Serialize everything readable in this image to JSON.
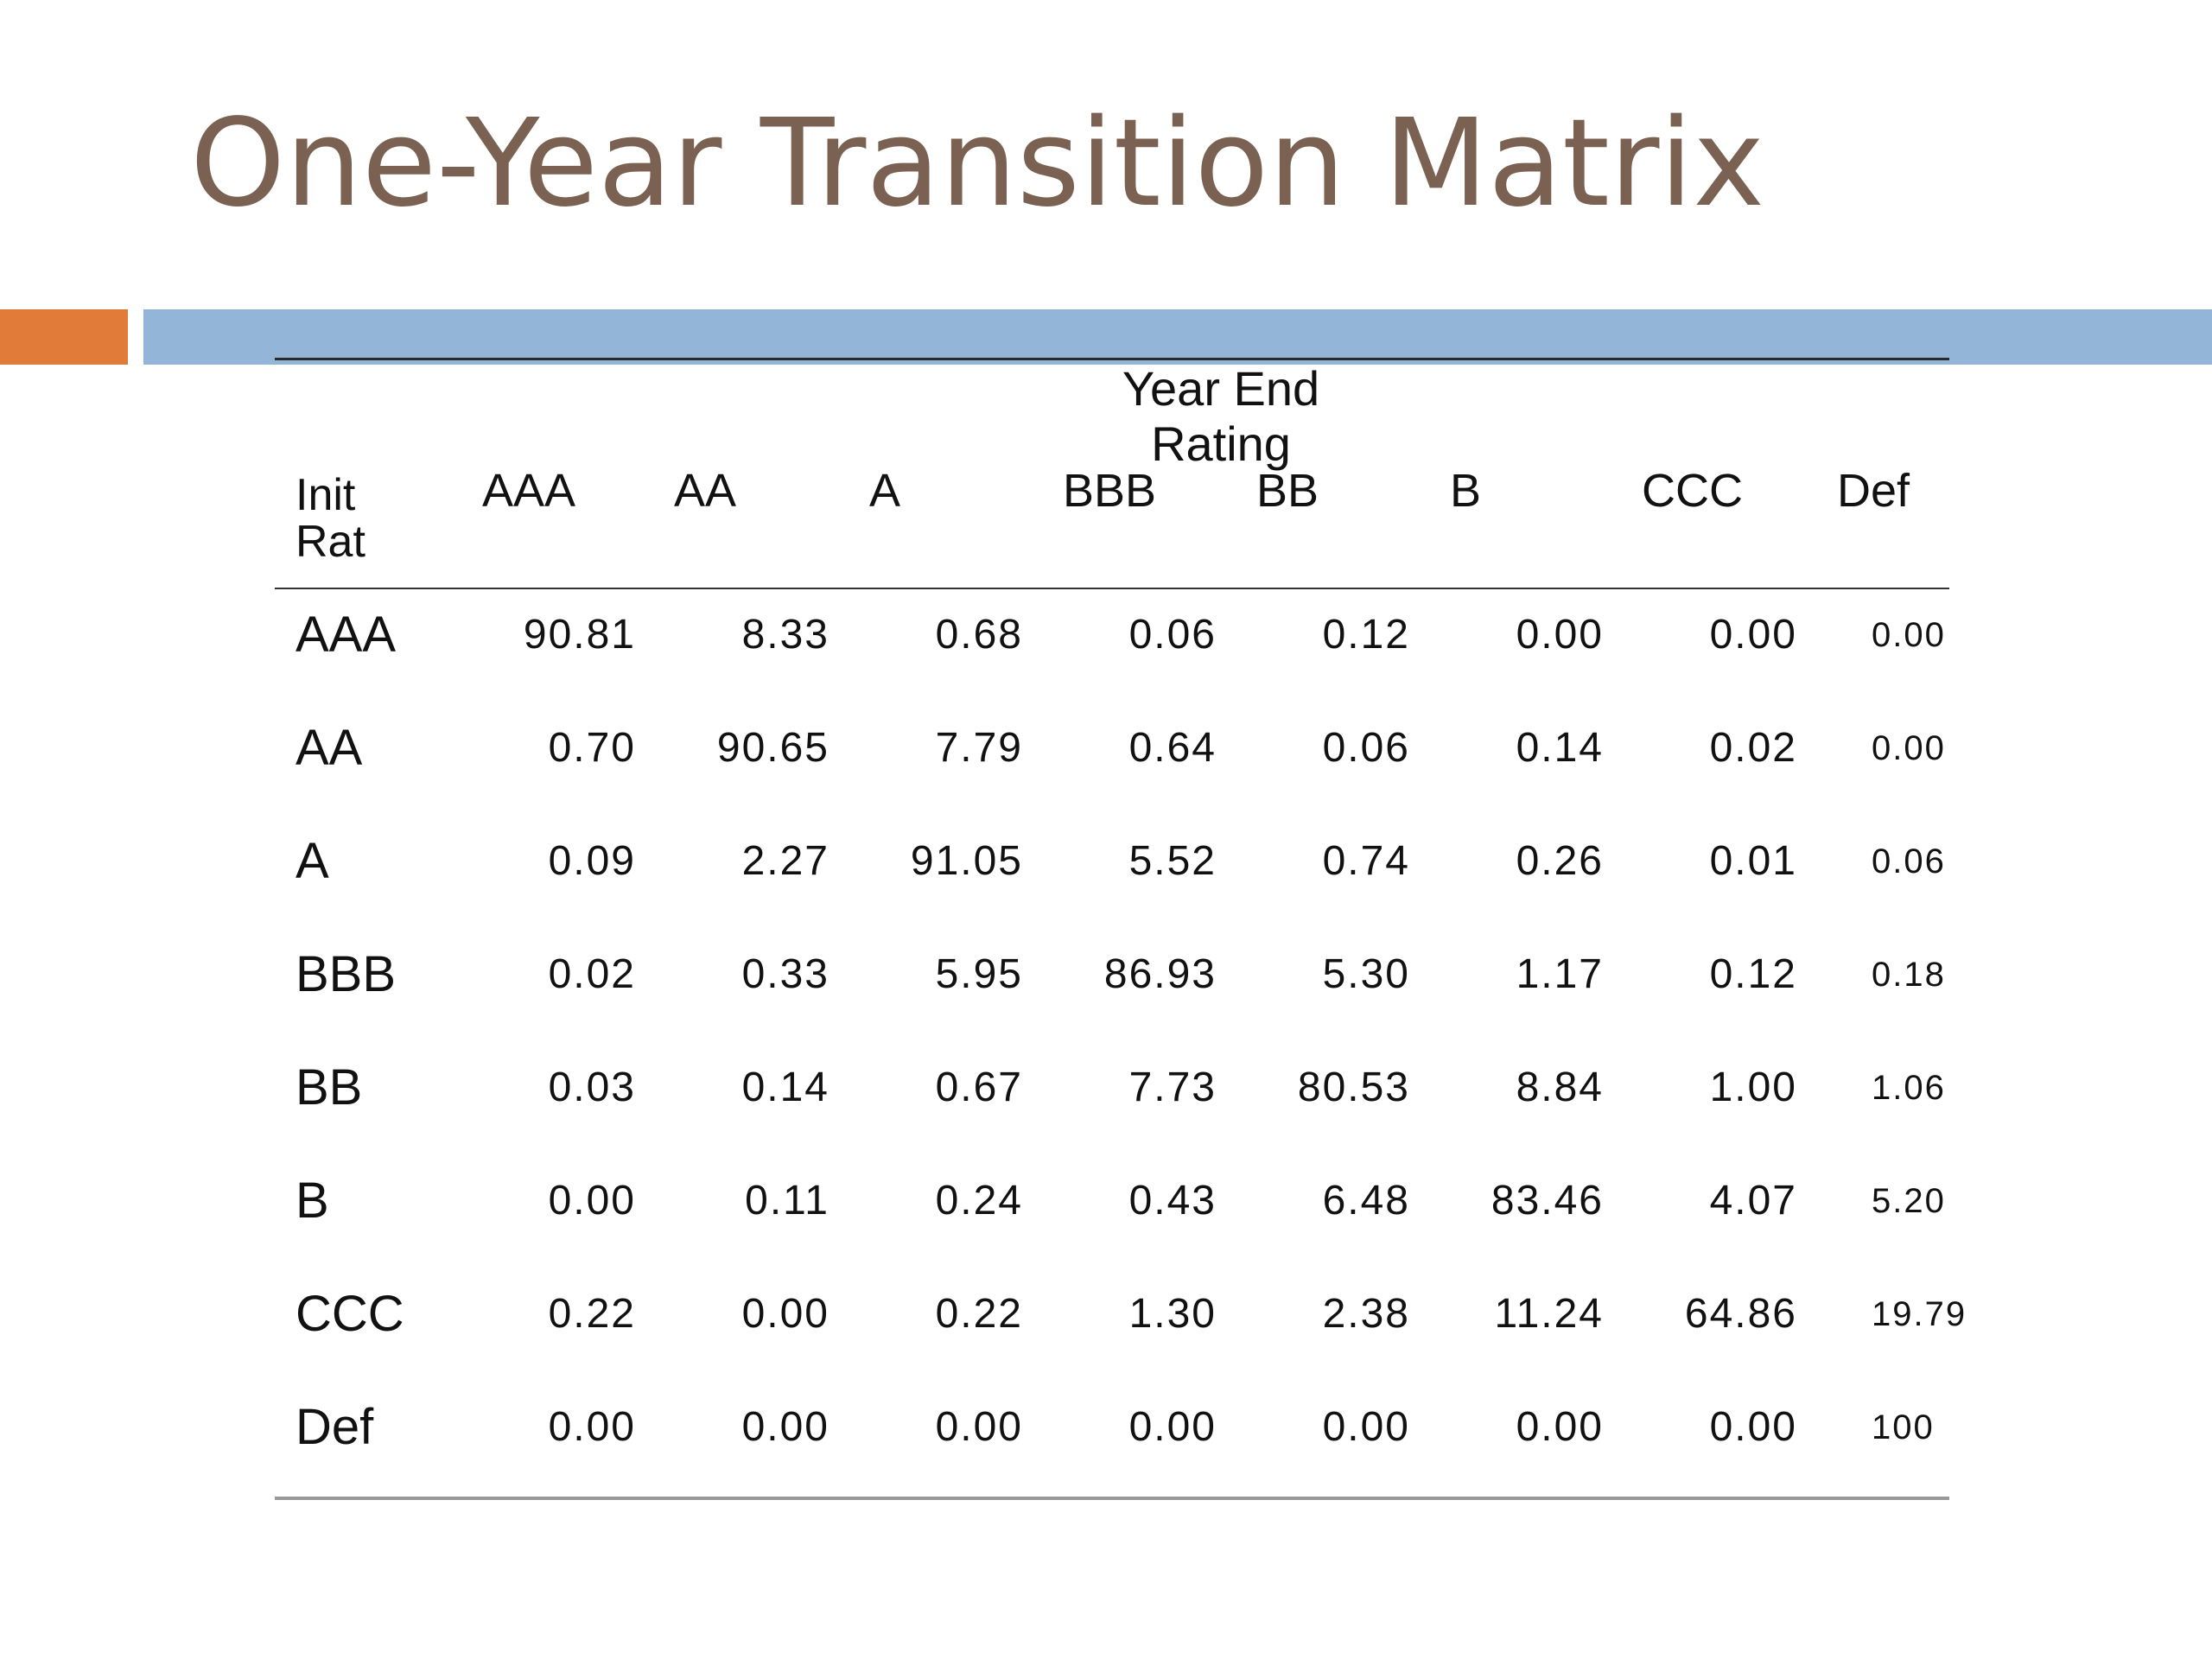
{
  "slide": {
    "title": "One-Year Transition Matrix"
  },
  "colors": {
    "title": "#7a6151",
    "accent_orange": "#e07b39",
    "accent_blue": "#93b6d8"
  },
  "table": {
    "group_header": "Year End\nRating",
    "row_header_label": "Init\nRat",
    "columns": [
      "AAA",
      "AA",
      "A",
      "BBB",
      "BB",
      "B",
      "CCC",
      "Def"
    ],
    "rows": [
      {
        "label": "AAA",
        "values": [
          "90.81",
          "8.33",
          "0.68",
          "0.06",
          "0.12",
          "0.00",
          "0.00",
          "0.00"
        ]
      },
      {
        "label": "AA",
        "values": [
          "0.70",
          "90.65",
          "7.79",
          "0.64",
          "0.06",
          "0.14",
          "0.02",
          "0.00"
        ]
      },
      {
        "label": "A",
        "values": [
          "0.09",
          "2.27",
          "91.05",
          "5.52",
          "0.74",
          "0.26",
          "0.01",
          "0.06"
        ]
      },
      {
        "label": "BBB",
        "values": [
          "0.02",
          "0.33",
          "5.95",
          "86.93",
          "5.30",
          "1.17",
          "0.12",
          "0.18"
        ]
      },
      {
        "label": "BB",
        "values": [
          "0.03",
          "0.14",
          "0.67",
          "7.73",
          "80.53",
          "8.84",
          "1.00",
          "1.06"
        ]
      },
      {
        "label": "B",
        "values": [
          "0.00",
          "0.11",
          "0.24",
          "0.43",
          "6.48",
          "83.46",
          "4.07",
          "5.20"
        ]
      },
      {
        "label": "CCC",
        "values": [
          "0.22",
          "0.00",
          "0.22",
          "1.30",
          "2.38",
          "11.24",
          "64.86",
          "19.79"
        ]
      },
      {
        "label": "Def",
        "values": [
          "0.00",
          "0.00",
          "0.00",
          "0.00",
          "0.00",
          "0.00",
          "0.00",
          "100"
        ]
      }
    ]
  }
}
